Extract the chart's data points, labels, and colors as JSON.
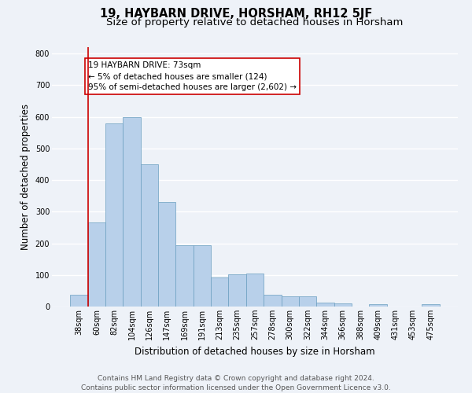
{
  "title": "19, HAYBARN DRIVE, HORSHAM, RH12 5JF",
  "subtitle": "Size of property relative to detached houses in Horsham",
  "xlabel": "Distribution of detached houses by size in Horsham",
  "ylabel": "Number of detached properties",
  "bar_labels": [
    "38sqm",
    "60sqm",
    "82sqm",
    "104sqm",
    "126sqm",
    "147sqm",
    "169sqm",
    "191sqm",
    "213sqm",
    "235sqm",
    "257sqm",
    "278sqm",
    "300sqm",
    "322sqm",
    "344sqm",
    "366sqm",
    "388sqm",
    "409sqm",
    "431sqm",
    "453sqm",
    "475sqm"
  ],
  "bar_values": [
    38,
    265,
    580,
    600,
    450,
    330,
    195,
    195,
    92,
    103,
    105,
    38,
    32,
    32,
    12,
    10,
    0,
    7,
    0,
    0,
    7
  ],
  "bar_color": "#b8d0ea",
  "bar_edge_color": "#6a9ec0",
  "bar_edge_width": 0.5,
  "ylim": [
    0,
    820
  ],
  "yticks": [
    0,
    100,
    200,
    300,
    400,
    500,
    600,
    700,
    800
  ],
  "vline_color": "#cc0000",
  "vline_x_index": 1,
  "annotation_line1": "19 HAYBARN DRIVE: 73sqm",
  "annotation_line2": "← 5% of detached houses are smaller (124)",
  "annotation_line3": "95% of semi-detached houses are larger (2,602) →",
  "annotation_box_color": "#ffffff",
  "annotation_box_edge_color": "#cc0000",
  "footer_text": "Contains HM Land Registry data © Crown copyright and database right 2024.\nContains public sector information licensed under the Open Government Licence v3.0.",
  "background_color": "#eef2f8",
  "plot_background_color": "#eef2f8",
  "grid_color": "#ffffff",
  "title_fontsize": 10.5,
  "subtitle_fontsize": 9.5,
  "axis_label_fontsize": 8.5,
  "tick_fontsize": 7,
  "annotation_fontsize": 7.5,
  "footer_fontsize": 6.5
}
